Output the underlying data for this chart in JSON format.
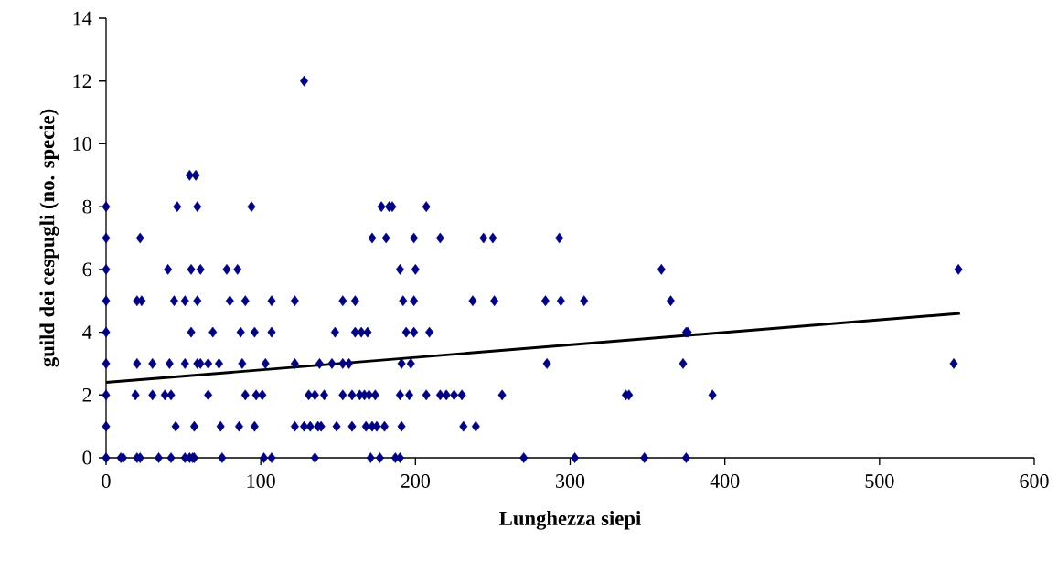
{
  "chart_data": {
    "type": "scatter",
    "xlabel": "Lunghezza siepi",
    "ylabel": "guild dei cespugli (no. specie)",
    "xlim": [
      0,
      600
    ],
    "xticks": [
      0,
      100,
      200,
      300,
      400,
      500,
      600
    ],
    "ylim": [
      0,
      14
    ],
    "yticks": [
      0,
      2,
      4,
      6,
      8,
      10,
      12,
      14
    ],
    "grid": false,
    "series": [
      {
        "color": "#000080",
        "marker": "diamond",
        "x": [
          0,
          9.5,
          11,
          20,
          22,
          34,
          42,
          51,
          54,
          56,
          57,
          75,
          102,
          107,
          135,
          171,
          177,
          187,
          190,
          270,
          303,
          348,
          375,
          0,
          45,
          57,
          74,
          86,
          96,
          122,
          128,
          132,
          137,
          139,
          149,
          159,
          168,
          172,
          175,
          180,
          191,
          231,
          239,
          0,
          19,
          30,
          38,
          42,
          66,
          90,
          97,
          101,
          131,
          135,
          141,
          153,
          159,
          164,
          167,
          170,
          174,
          190,
          196,
          207,
          216,
          220,
          225,
          230,
          256,
          336,
          338,
          392,
          0,
          20,
          30,
          41,
          51,
          59,
          61,
          66,
          73,
          88,
          103,
          122,
          138,
          146,
          153,
          157,
          191,
          197,
          285,
          373,
          548,
          0,
          55,
          69,
          87,
          96,
          107,
          148,
          161,
          165,
          169,
          194,
          199,
          209,
          375,
          376,
          0,
          20,
          23,
          44,
          51,
          59,
          80,
          90,
          107,
          122,
          153,
          161,
          192,
          199,
          237,
          251,
          284,
          294,
          309,
          365,
          0,
          40,
          55,
          61,
          78,
          85,
          190,
          200,
          359,
          551,
          0,
          22,
          172,
          181,
          199,
          216,
          244,
          250,
          293,
          0,
          46,
          59,
          94,
          178,
          183,
          185,
          207,
          54,
          58,
          128
        ],
        "values": [
          0,
          0,
          0,
          0,
          0,
          0,
          0,
          0,
          0,
          0,
          0,
          0,
          0,
          0,
          0,
          0,
          0,
          0,
          0,
          0,
          0,
          0,
          0,
          1,
          1,
          1,
          1,
          1,
          1,
          1,
          1,
          1,
          1,
          1,
          1,
          1,
          1,
          1,
          1,
          1,
          1,
          1,
          1,
          2,
          2,
          2,
          2,
          2,
          2,
          2,
          2,
          2,
          2,
          2,
          2,
          2,
          2,
          2,
          2,
          2,
          2,
          2,
          2,
          2,
          2,
          2,
          2,
          2,
          2,
          2,
          2,
          2,
          3,
          3,
          3,
          3,
          3,
          3,
          3,
          3,
          3,
          3,
          3,
          3,
          3,
          3,
          3,
          3,
          3,
          3,
          3,
          3,
          3,
          4,
          4,
          4,
          4,
          4,
          4,
          4,
          4,
          4,
          4,
          4,
          4,
          4,
          4,
          4,
          5,
          5,
          5,
          5,
          5,
          5,
          5,
          5,
          5,
          5,
          5,
          5,
          5,
          5,
          5,
          5,
          5,
          5,
          5,
          5,
          6,
          6,
          6,
          6,
          6,
          6,
          6,
          6,
          6,
          6,
          7,
          7,
          7,
          7,
          7,
          7,
          7,
          7,
          7,
          8,
          8,
          8,
          8,
          8,
          8,
          8,
          8,
          9,
          9,
          12
        ]
      },
      {
        "type": "line",
        "color": "#000000",
        "marker": "none",
        "line_style": "solid",
        "x": [
          0,
          552
        ],
        "values": [
          2.4,
          4.6
        ]
      }
    ]
  }
}
